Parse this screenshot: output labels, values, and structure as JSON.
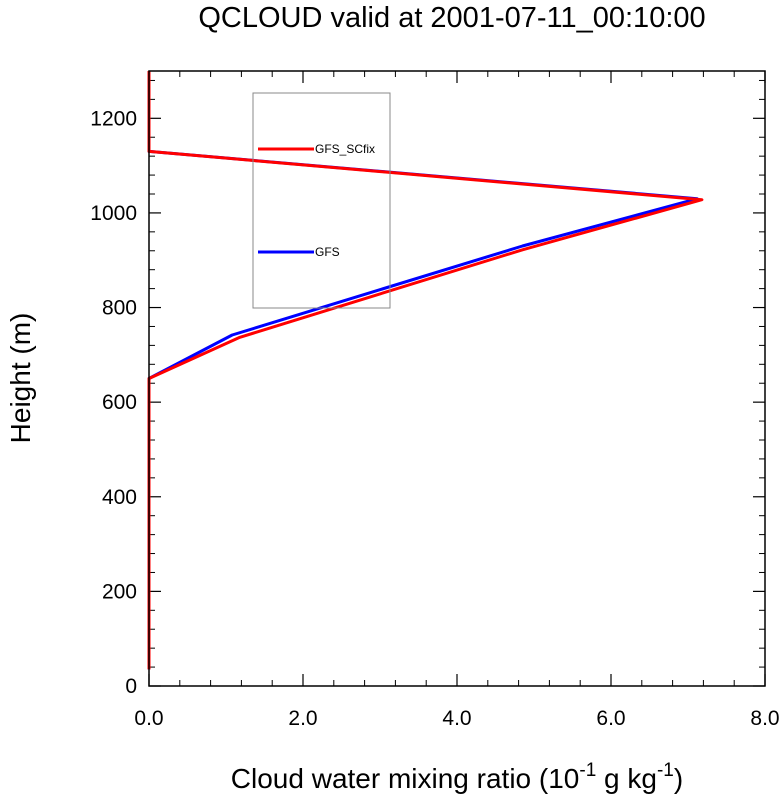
{
  "chart_data": {
    "type": "line",
    "title": "QCLOUD valid at 2001-07-11_00:10:00",
    "xlabel": {
      "prefix": "Cloud water mixing ratio (10",
      "sup1": "-1",
      "middle": " g kg",
      "sup2": "-1",
      "suffix": ")"
    },
    "ylabel": "Height (m)",
    "xlim": [
      0,
      8
    ],
    "ylim": [
      0,
      1300
    ],
    "xticks": [
      {
        "value": 0,
        "label": "0.0"
      },
      {
        "value": 2,
        "label": "2.0"
      },
      {
        "value": 4,
        "label": "4.0"
      },
      {
        "value": 6,
        "label": "6.0"
      },
      {
        "value": 8,
        "label": "8.0"
      }
    ],
    "yticks": [
      {
        "value": 0,
        "label": "0"
      },
      {
        "value": 200,
        "label": "200"
      },
      {
        "value": 400,
        "label": "400"
      },
      {
        "value": 600,
        "label": "600"
      },
      {
        "value": 800,
        "label": "800"
      },
      {
        "value": 1000,
        "label": "1000"
      },
      {
        "value": 1200,
        "label": "1200"
      }
    ],
    "grid": false,
    "legend_position": "top-left",
    "series": [
      {
        "name": "GFS",
        "color": "#0000ff",
        "points": [
          [
            0,
            35
          ],
          [
            0,
            650
          ],
          [
            1.08,
            742
          ],
          [
            4.85,
            930
          ],
          [
            7.12,
            1030
          ],
          [
            0,
            1130
          ],
          [
            0,
            1300
          ]
        ]
      },
      {
        "name": "GFS_SCfix",
        "color": "#ff0000",
        "points": [
          [
            0,
            35
          ],
          [
            0,
            650
          ],
          [
            1.18,
            737
          ],
          [
            4.85,
            922
          ],
          [
            7.18,
            1028
          ],
          [
            0,
            1130
          ],
          [
            0,
            1300
          ]
        ]
      }
    ],
    "legend_order": [
      "GFS_SCfix",
      "GFS"
    ]
  }
}
